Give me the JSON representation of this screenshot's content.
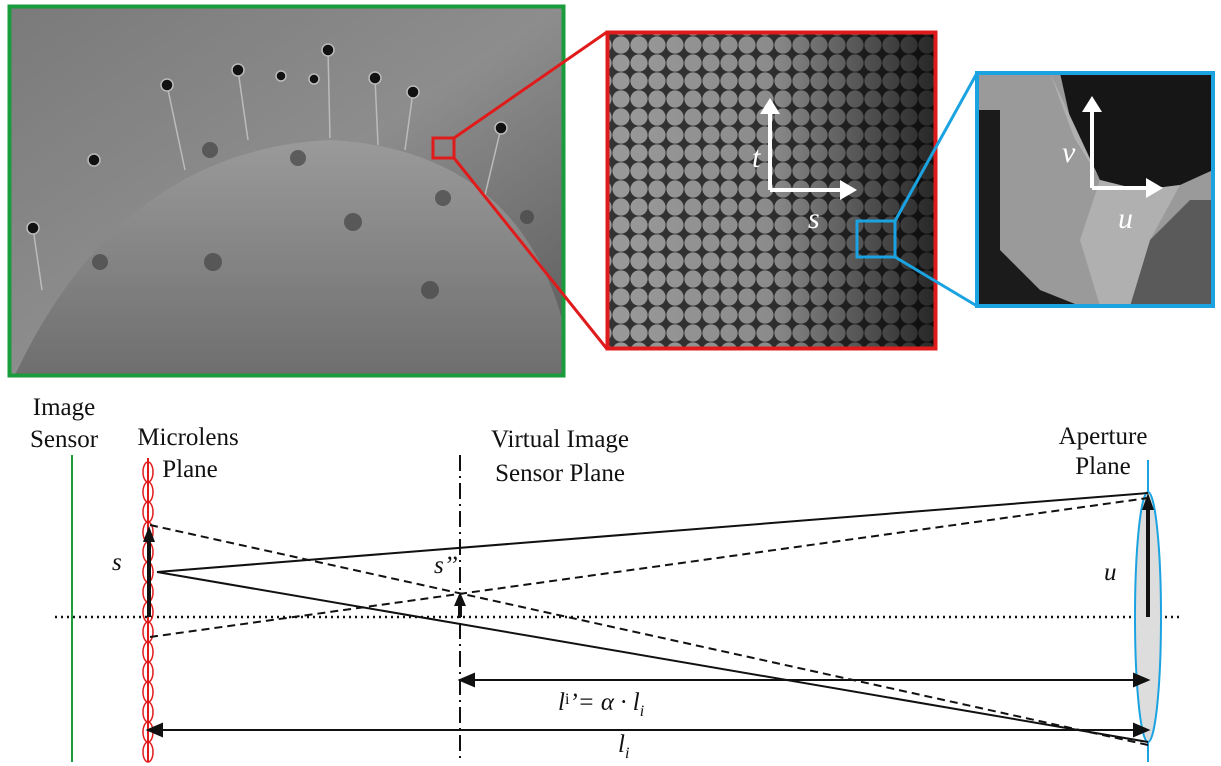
{
  "panels": {
    "inset_axes": {
      "t": "t",
      "s": "s"
    },
    "pixel_axes": {
      "v": "v",
      "u": "u"
    }
  },
  "planes": {
    "image_sensor": [
      "Image",
      "Sensor"
    ],
    "microlens": [
      "Microlens",
      "Plane"
    ],
    "virtual": [
      "Virtual Image",
      "Sensor Plane"
    ],
    "aperture": [
      "Aperture",
      "Plane"
    ]
  },
  "symbols": {
    "s": "s",
    "s_virtual": "s’’",
    "u": "u"
  },
  "distances": {
    "scaled": {
      "l": "l",
      "i": "i",
      "prime_eq": "’= α · ",
      "l2": "l",
      "i2": "i"
    },
    "full": {
      "l": "l",
      "i": "i"
    }
  }
}
